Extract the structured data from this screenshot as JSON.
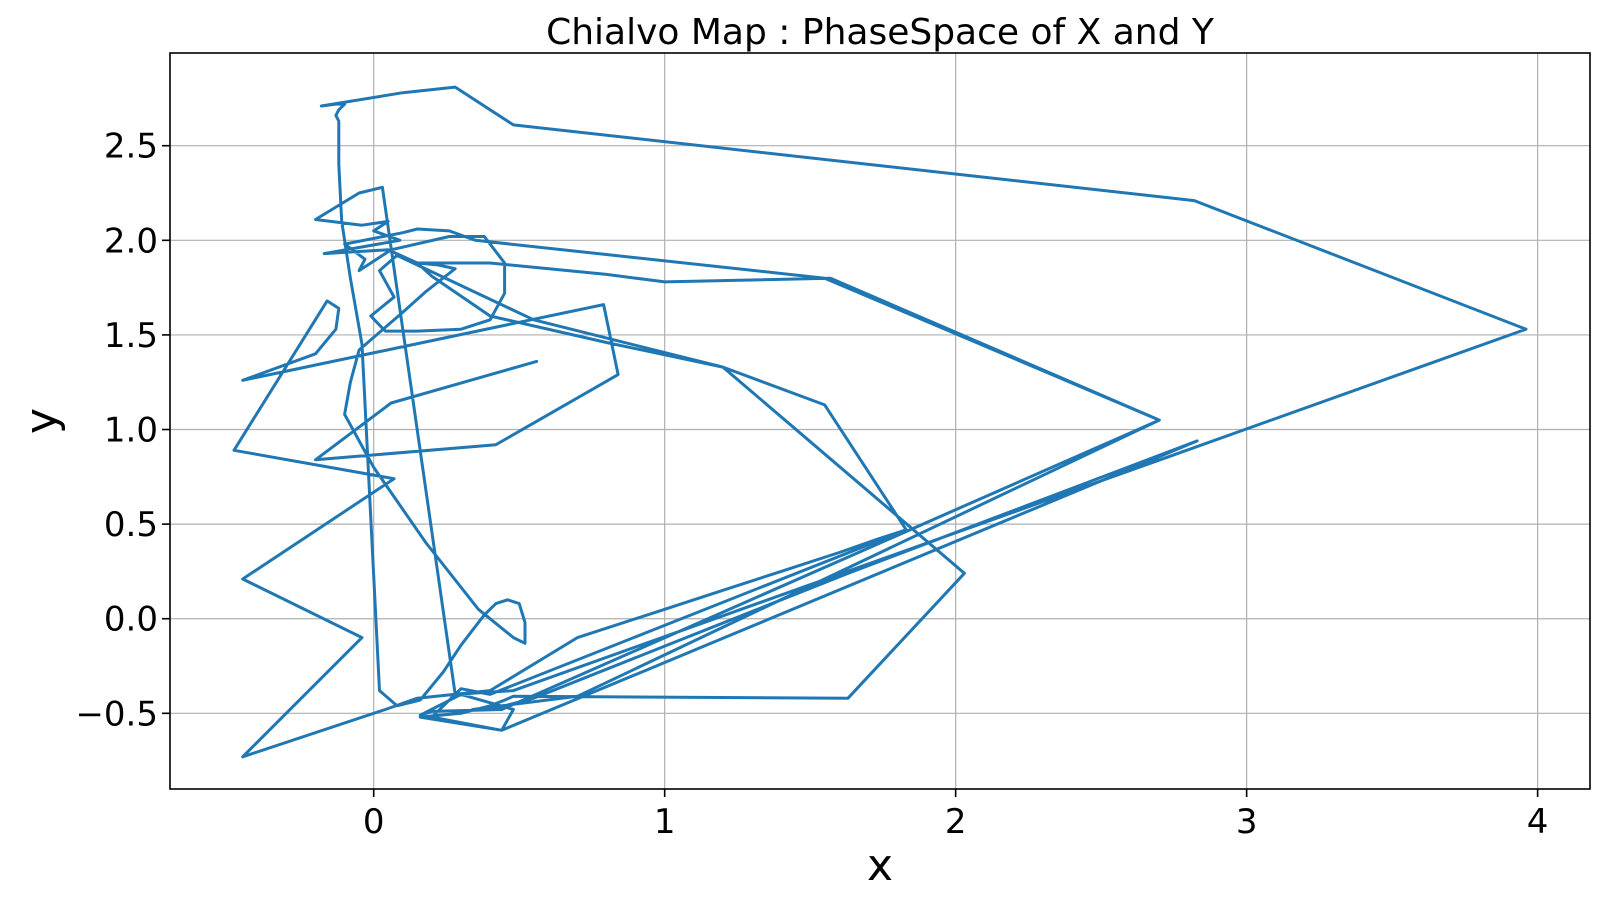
{
  "chart_data": {
    "type": "line",
    "title": "Chialvo Map : PhaseSpace of X and Y",
    "xlabel": "x",
    "ylabel": "y",
    "xlim": [
      -0.7,
      4.18
    ],
    "ylim": [
      -0.9,
      2.99
    ],
    "xticks": [
      0,
      1,
      2,
      3,
      4
    ],
    "xtick_labels": [
      "0",
      "1",
      "2",
      "3",
      "4"
    ],
    "yticks": [
      -0.5,
      0.0,
      0.5,
      1.0,
      1.5,
      2.0,
      2.5
    ],
    "ytick_labels": [
      "−0.5",
      "0.0",
      "0.5",
      "1.0",
      "1.5",
      "2.0",
      "2.5"
    ],
    "grid": true,
    "line_color": "#1f77b4",
    "series": [
      {
        "x": [
          0.56,
          0.06,
          -0.2,
          0.42,
          0.84,
          0.79,
          -0.45,
          -0.2,
          -0.13,
          -0.12,
          -0.16,
          -0.48,
          0.07,
          -0.45,
          -0.04,
          -0.45,
          0.04,
          0.15,
          0.4,
          0.7,
          1.0,
          1.2,
          1.4,
          1.6,
          1.73,
          1.83,
          1.55,
          1.2,
          0.8,
          0.4,
          0.2,
          0.15,
          0.22,
          0.28,
          0.23,
          0.18,
          0.1,
          -0.05,
          -0.08,
          -0.1,
          0.0,
          0.18,
          0.36,
          0.48,
          0.52,
          0.52,
          0.5,
          0.46,
          0.42,
          0.38,
          0.34,
          0.3,
          0.24,
          0.16,
          0.08,
          0.02,
          -0.04,
          -0.08,
          -0.11,
          -0.12,
          -0.12,
          -0.12,
          -0.13,
          -0.12,
          -0.1,
          -0.13,
          -0.18,
          0.1,
          0.28,
          0.48,
          2.82,
          3.96,
          0.48,
          0.28,
          0.03,
          -0.05,
          -0.2,
          -0.04,
          0.05,
          0.0,
          0.09,
          -0.17,
          0.05,
          0.15,
          0.4,
          0.8,
          1.0,
          1.57,
          2.7,
          0.44,
          0.2,
          0.16,
          0.3,
          0.48,
          0.44,
          0.16,
          0.3,
          0.4,
          0.45,
          0.48,
          1.63,
          2.03,
          1.2,
          0.55,
          0.08,
          0.02,
          0.07,
          -0.01,
          0.04,
          0.15,
          0.3,
          0.4,
          0.45,
          0.45,
          0.38,
          0.26,
          0.06,
          -0.05,
          -0.03,
          -0.1,
          0.1,
          0.15,
          0.26,
          0.35,
          1.55,
          2.7,
          0.7,
          0.34,
          0.4,
          0.45,
          0.55,
          1.63,
          2.83,
          0.44,
          0.2,
          0.3,
          0.4,
          1.83
        ],
        "y": [
          1.36,
          1.14,
          0.84,
          0.92,
          1.29,
          1.66,
          1.26,
          1.4,
          1.53,
          1.64,
          1.68,
          0.89,
          0.74,
          0.21,
          -0.1,
          -0.73,
          -0.48,
          -0.42,
          -0.38,
          -0.1,
          0.05,
          0.15,
          0.25,
          0.35,
          0.42,
          0.47,
          1.13,
          1.33,
          1.46,
          1.6,
          1.81,
          1.88,
          1.87,
          1.85,
          1.79,
          1.73,
          1.62,
          1.42,
          1.25,
          1.08,
          0.8,
          0.4,
          0.05,
          -0.1,
          -0.13,
          -0.02,
          0.08,
          0.1,
          0.08,
          0.02,
          -0.06,
          -0.14,
          -0.28,
          -0.43,
          -0.46,
          -0.38,
          1.45,
          1.8,
          2.1,
          2.4,
          2.55,
          2.63,
          2.66,
          2.69,
          2.72,
          2.72,
          2.71,
          2.78,
          2.81,
          2.61,
          2.21,
          1.53,
          -0.38,
          -0.4,
          2.28,
          2.25,
          2.11,
          2.08,
          2.1,
          2.05,
          2.0,
          1.93,
          1.95,
          1.88,
          1.88,
          1.82,
          1.78,
          1.8,
          1.05,
          -0.48,
          -0.49,
          -0.51,
          -0.4,
          -0.48,
          -0.59,
          -0.52,
          -0.5,
          -0.46,
          -0.43,
          -0.41,
          -0.42,
          0.24,
          1.33,
          1.58,
          1.92,
          1.84,
          1.7,
          1.6,
          1.52,
          1.52,
          1.53,
          1.58,
          1.72,
          1.88,
          2.02,
          2.02,
          1.95,
          1.84,
          1.9,
          1.98,
          2.04,
          2.06,
          2.05,
          2.0,
          1.8,
          1.05,
          -0.41,
          -0.48,
          -0.48,
          -0.46,
          -0.42,
          0.24,
          0.94,
          -0.59,
          -0.52,
          -0.37,
          -0.4,
          0.47
        ]
      }
    ]
  }
}
